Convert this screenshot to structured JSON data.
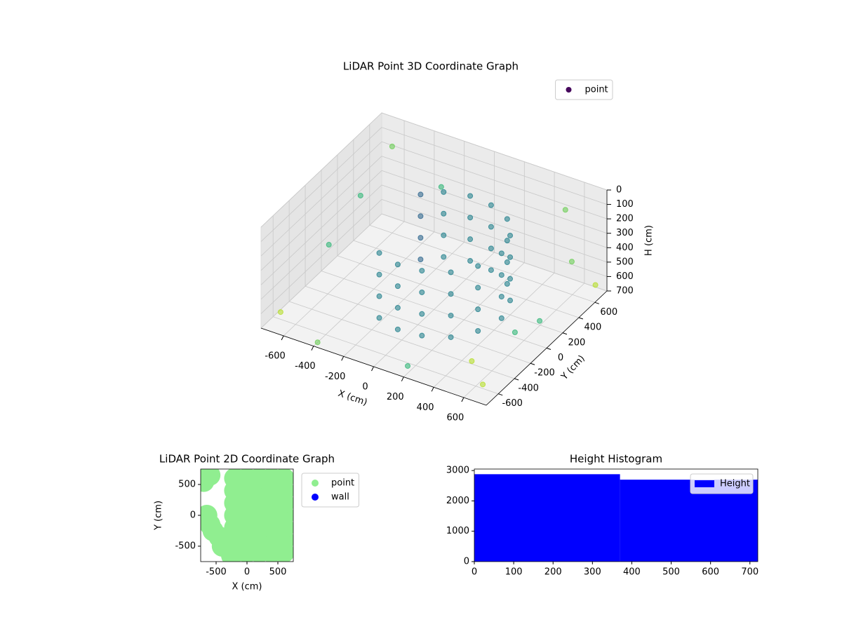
{
  "chart_data": [
    {
      "type": "scatter3d",
      "title": "LiDAR Point 3D Coordinate Graph",
      "xlabel": "X (cm)",
      "ylabel": "Y (cm)",
      "zlabel": "H (cm)",
      "xlim": [
        -750,
        750
      ],
      "ylim": [
        -750,
        750
      ],
      "zlim": [
        0,
        700
      ],
      "invert_z": true,
      "xticks": [
        -600,
        -400,
        -200,
        0,
        200,
        400,
        600
      ],
      "yticks": [
        -600,
        -400,
        -200,
        0,
        200,
        400,
        600
      ],
      "zticks": [
        0,
        100,
        200,
        300,
        400,
        500,
        600,
        700
      ],
      "grid": true,
      "colormap": "viridis",
      "legend": "upper right",
      "series": [
        {
          "name": "point",
          "color": "#46085c",
          "x": [
            450,
            450,
            450,
            450,
            400,
            400,
            400,
            400,
            300,
            300,
            300,
            300,
            150,
            150,
            150,
            150,
            0,
            0,
            0,
            0,
            -150,
            -150,
            -150,
            -150,
            -250,
            -250,
            -250,
            -250,
            400,
            400,
            400,
            400,
            300,
            300,
            300,
            300,
            150,
            150,
            150,
            150,
            0,
            0,
            0,
            0,
            -150,
            -150,
            -150,
            -150,
            -700,
            -650,
            -600,
            700,
            700,
            600,
            -400,
            200,
            650,
            -700,
            500,
            -300,
            700,
            650
          ],
          "y": [
            0,
            0,
            0,
            0,
            200,
            200,
            200,
            200,
            350,
            350,
            350,
            350,
            430,
            430,
            430,
            430,
            450,
            450,
            450,
            450,
            400,
            400,
            400,
            400,
            300,
            300,
            300,
            300,
            -200,
            -200,
            -200,
            -200,
            -350,
            -350,
            -350,
            -350,
            -430,
            -430,
            -430,
            -430,
            -450,
            -450,
            -450,
            -450,
            -400,
            -400,
            -400,
            -400,
            -600,
            300,
            600,
            -700,
            700,
            -650,
            -700,
            -700,
            500,
            0,
            700,
            650,
            -300,
            100
          ],
          "z": [
            150,
            300,
            450,
            600,
            150,
            300,
            450,
            600,
            150,
            300,
            450,
            600,
            150,
            300,
            450,
            600,
            150,
            300,
            450,
            600,
            150,
            300,
            450,
            600,
            150,
            300,
            450,
            600,
            150,
            300,
            450,
            600,
            150,
            300,
            450,
            600,
            150,
            300,
            450,
            600,
            150,
            300,
            450,
            600,
            150,
            300,
            450,
            600,
            650,
            300,
            100,
            600,
            650,
            500,
            700,
            650,
            400,
            500,
            200,
            300,
            450,
            600
          ]
        }
      ]
    },
    {
      "type": "scatter",
      "title": "LiDAR Point 2D Coordinate Graph",
      "xlabel": "X (cm)",
      "ylabel": "Y (cm)",
      "xlim": [
        -750,
        750
      ],
      "ylim": [
        -750,
        750
      ],
      "xticks": [
        -500,
        0,
        500
      ],
      "yticks": [
        -500,
        0,
        500
      ],
      "legend": "outside right",
      "series": [
        {
          "name": "point",
          "color": "#90ee90",
          "x": [
            -200,
            -200,
            -200,
            -200,
            -200,
            -200,
            -200,
            0,
            0,
            0,
            0,
            0,
            0,
            0,
            200,
            200,
            200,
            200,
            200,
            200,
            200,
            400,
            400,
            400,
            400,
            400,
            400,
            400,
            600,
            600,
            600,
            600,
            600,
            600,
            600,
            -650,
            -600,
            -550,
            -450,
            -700,
            -400,
            -250,
            -600
          ],
          "y": [
            -600,
            -400,
            -200,
            0,
            200,
            400,
            600,
            -600,
            -400,
            -200,
            0,
            200,
            400,
            600,
            -600,
            -400,
            -200,
            0,
            200,
            400,
            600,
            -600,
            -400,
            -200,
            0,
            200,
            400,
            600,
            -600,
            -400,
            -200,
            0,
            200,
            400,
            600,
            0,
            -150,
            -250,
            -350,
            550,
            -500,
            -650,
            650
          ]
        },
        {
          "name": "wall",
          "color": "#0000ff",
          "x": [],
          "y": []
        }
      ]
    },
    {
      "type": "histogram",
      "title": "Height Histogram",
      "xlim": [
        0,
        720
      ],
      "ylim": [
        0,
        3050
      ],
      "xticks": [
        0,
        100,
        200,
        300,
        400,
        500,
        600,
        700
      ],
      "yticks": [
        0,
        1000,
        2000,
        3000
      ],
      "legend": "upper right",
      "bins": [
        0,
        370,
        720
      ],
      "series": [
        {
          "name": "Height",
          "color": "#0000ff",
          "values": [
            2880,
            2700
          ]
        }
      ]
    }
  ]
}
